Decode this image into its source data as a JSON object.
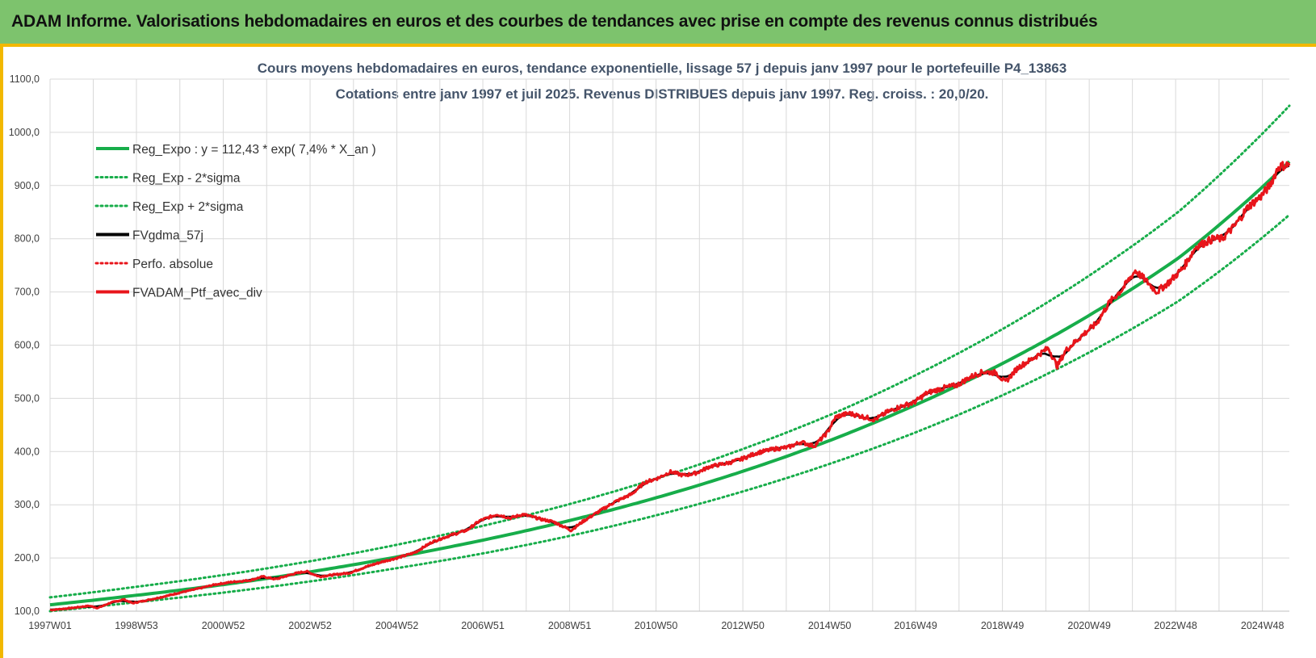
{
  "header": {
    "title": "ADAM Informe. Valorisations hebdomadaires en euros et des courbes de tendances avec prise en compte des revenus connus distribués"
  },
  "colors": {
    "header_bg": "#7dc36d",
    "frame_accent": "#f2b800",
    "reg_expo": "#17ad4a",
    "fv_gdma": "#000000",
    "portfolio": "#e8151b",
    "grid": "#d9d9d9"
  },
  "chart_data": {
    "type": "line",
    "title_line1": "Cours moyens hebdomadaires  en euros, tendance exponentielle, lissage 57 j depuis janv 1997 pour le portefeuille P4_13863",
    "title_line2": "Cotations  entre janv 1997 et juil 2025. Revenus DISTRIBUES depuis janv 1997. Reg. croiss. : 20,0/20.",
    "xlabel": "",
    "ylabel": "",
    "x_tick_labels": [
      "1997W01",
      "1998W53",
      "2000W52",
      "2002W52",
      "2004W52",
      "2006W51",
      "2008W51",
      "2010W50",
      "2012W50",
      "2014W50",
      "2016W49",
      "2018W49",
      "2020W49",
      "2022W48",
      "2024W48"
    ],
    "x_tick_years": [
      1997.0,
      1998.99,
      2000.99,
      2002.99,
      2004.99,
      2006.97,
      2008.97,
      2010.96,
      2012.96,
      2014.96,
      2016.94,
      2018.94,
      2020.94,
      2022.93,
      2024.93
    ],
    "xlim": [
      1997.0,
      2025.55
    ],
    "y_tick_labels": [
      "100,0",
      "200,0",
      "300,0",
      "400,0",
      "500,0",
      "600,0",
      "700,0",
      "800,0",
      "900,0",
      "1000,0",
      "1100,0"
    ],
    "ylim": [
      100,
      1100
    ],
    "grid": true,
    "legend_position": "top-left",
    "legend": [
      {
        "key": "reg_expo",
        "label": "Reg_Expo : y = 112,43 * exp( 7,4% *  X_an )",
        "style": "solid-thick",
        "color": "#17ad4a"
      },
      {
        "key": "reg_minus",
        "label": "Reg_Exp - 2*sigma",
        "style": "dotted",
        "color": "#17ad4a"
      },
      {
        "key": "reg_plus",
        "label": "Reg_Exp + 2*sigma",
        "style": "dotted",
        "color": "#17ad4a"
      },
      {
        "key": "fv_gdma",
        "label": "FVgdma_57j",
        "style": "solid-thick",
        "color": "#000000"
      },
      {
        "key": "perfo",
        "label": "Perfo. absolue",
        "style": "dotted",
        "color": "#e8151b"
      },
      {
        "key": "ptf",
        "label": "FVADAM_Ptf_avec_div",
        "style": "solid-thick",
        "color": "#e8151b"
      }
    ],
    "series": [
      {
        "key": "reg_expo",
        "x_start": 1997.0,
        "x_end": 2025.55,
        "values_at_years": [
          [
            1997,
            112
          ],
          [
            1999,
            130
          ],
          [
            2001,
            150
          ],
          [
            2003,
            174
          ],
          [
            2005,
            202
          ],
          [
            2007,
            234
          ],
          [
            2009,
            271
          ],
          [
            2011,
            314
          ],
          [
            2013,
            364
          ],
          [
            2015,
            422
          ],
          [
            2017,
            490
          ],
          [
            2019,
            568
          ],
          [
            2021,
            659
          ],
          [
            2023,
            764
          ],
          [
            2025.55,
            945
          ]
        ]
      },
      {
        "key": "reg_minus",
        "values_at_years": [
          [
            1997,
            100
          ],
          [
            1999,
            117
          ],
          [
            2001,
            135
          ],
          [
            2003,
            156
          ],
          [
            2005,
            181
          ],
          [
            2007,
            209
          ],
          [
            2009,
            242
          ],
          [
            2011,
            281
          ],
          [
            2013,
            326
          ],
          [
            2015,
            378
          ],
          [
            2017,
            438
          ],
          [
            2019,
            508
          ],
          [
            2021,
            589
          ],
          [
            2023,
            683
          ],
          [
            2025.55,
            845
          ]
        ]
      },
      {
        "key": "reg_plus",
        "values_at_years": [
          [
            1997,
            126
          ],
          [
            1999,
            146
          ],
          [
            2001,
            168
          ],
          [
            2003,
            194
          ],
          [
            2005,
            225
          ],
          [
            2007,
            261
          ],
          [
            2009,
            302
          ],
          [
            2011,
            350
          ],
          [
            2013,
            406
          ],
          [
            2015,
            470
          ],
          [
            2017,
            546
          ],
          [
            2019,
            633
          ],
          [
            2021,
            734
          ],
          [
            2023,
            851
          ],
          [
            2025.55,
            1050
          ]
        ]
      },
      {
        "key": "ptf",
        "points": [
          [
            1997.0,
            102
          ],
          [
            1997.5,
            106
          ],
          [
            1997.9,
            110
          ],
          [
            1998.1,
            106
          ],
          [
            1998.4,
            116
          ],
          [
            1998.7,
            122
          ],
          [
            1998.9,
            115
          ],
          [
            1999.2,
            120
          ],
          [
            1999.6,
            127
          ],
          [
            2000.0,
            135
          ],
          [
            2000.4,
            142
          ],
          [
            2000.8,
            150
          ],
          [
            2001.2,
            155
          ],
          [
            2001.6,
            158
          ],
          [
            2001.9,
            165
          ],
          [
            2002.2,
            160
          ],
          [
            2002.6,
            170
          ],
          [
            2002.9,
            175
          ],
          [
            2003.2,
            165
          ],
          [
            2003.5,
            168
          ],
          [
            2003.9,
            172
          ],
          [
            2004.3,
            184
          ],
          [
            2004.7,
            194
          ],
          [
            2005.0,
            200
          ],
          [
            2005.4,
            210
          ],
          [
            2005.8,
            230
          ],
          [
            2006.2,
            242
          ],
          [
            2006.6,
            252
          ],
          [
            2006.9,
            270
          ],
          [
            2007.3,
            282
          ],
          [
            2007.6,
            275
          ],
          [
            2007.9,
            282
          ],
          [
            2008.3,
            273
          ],
          [
            2008.6,
            268
          ],
          [
            2008.8,
            260
          ],
          [
            2009.0,
            252
          ],
          [
            2009.3,
            270
          ],
          [
            2009.7,
            290
          ],
          [
            2010.0,
            305
          ],
          [
            2010.4,
            320
          ],
          [
            2010.7,
            342
          ],
          [
            2011.0,
            350
          ],
          [
            2011.3,
            362
          ],
          [
            2011.6,
            355
          ],
          [
            2011.9,
            360
          ],
          [
            2012.2,
            372
          ],
          [
            2012.6,
            378
          ],
          [
            2012.9,
            385
          ],
          [
            2013.3,
            398
          ],
          [
            2013.7,
            405
          ],
          [
            2014.0,
            408
          ],
          [
            2014.3,
            418
          ],
          [
            2014.6,
            410
          ],
          [
            2014.9,
            435
          ],
          [
            2015.1,
            465
          ],
          [
            2015.4,
            472
          ],
          [
            2015.7,
            466
          ],
          [
            2016.0,
            460
          ],
          [
            2016.3,
            475
          ],
          [
            2016.6,
            485
          ],
          [
            2016.9,
            492
          ],
          [
            2017.2,
            510
          ],
          [
            2017.6,
            520
          ],
          [
            2017.9,
            525
          ],
          [
            2018.2,
            540
          ],
          [
            2018.5,
            550
          ],
          [
            2018.8,
            548
          ],
          [
            2019.0,
            530
          ],
          [
            2019.3,
            558
          ],
          [
            2019.7,
            578
          ],
          [
            2020.0,
            595
          ],
          [
            2020.2,
            560
          ],
          [
            2020.4,
            590
          ],
          [
            2020.8,
            620
          ],
          [
            2021.1,
            640
          ],
          [
            2021.4,
            680
          ],
          [
            2021.7,
            705
          ],
          [
            2022.0,
            740
          ],
          [
            2022.2,
            725
          ],
          [
            2022.5,
            700
          ],
          [
            2022.8,
            720
          ],
          [
            2023.1,
            745
          ],
          [
            2023.4,
            785
          ],
          [
            2023.8,
            800
          ],
          [
            2024.0,
            800
          ],
          [
            2024.3,
            825
          ],
          [
            2024.6,
            860
          ],
          [
            2024.9,
            880
          ],
          [
            2025.1,
            900
          ],
          [
            2025.3,
            935
          ],
          [
            2025.55,
            940
          ]
        ]
      },
      {
        "key": "fv_gdma",
        "points": [
          [
            1997.0,
            101
          ],
          [
            1998.0,
            110
          ],
          [
            1999.0,
            119
          ],
          [
            2000.0,
            134
          ],
          [
            2001.0,
            151
          ],
          [
            2002.0,
            162
          ],
          [
            2003.0,
            168
          ],
          [
            2004.0,
            182
          ],
          [
            2005.0,
            200
          ],
          [
            2006.0,
            232
          ],
          [
            2007.0,
            270
          ],
          [
            2008.0,
            276
          ],
          [
            2009.0,
            258
          ],
          [
            2010.0,
            300
          ],
          [
            2011.0,
            348
          ],
          [
            2012.0,
            366
          ],
          [
            2013.0,
            394
          ],
          [
            2014.0,
            410
          ],
          [
            2015.0,
            452
          ],
          [
            2016.0,
            466
          ],
          [
            2017.0,
            505
          ],
          [
            2018.0,
            535
          ],
          [
            2019.0,
            540
          ],
          [
            2020.0,
            590
          ],
          [
            2021.0,
            635
          ],
          [
            2022.0,
            725
          ],
          [
            2023.0,
            730
          ],
          [
            2024.0,
            802
          ],
          [
            2025.0,
            885
          ],
          [
            2025.55,
            930
          ]
        ]
      }
    ]
  }
}
